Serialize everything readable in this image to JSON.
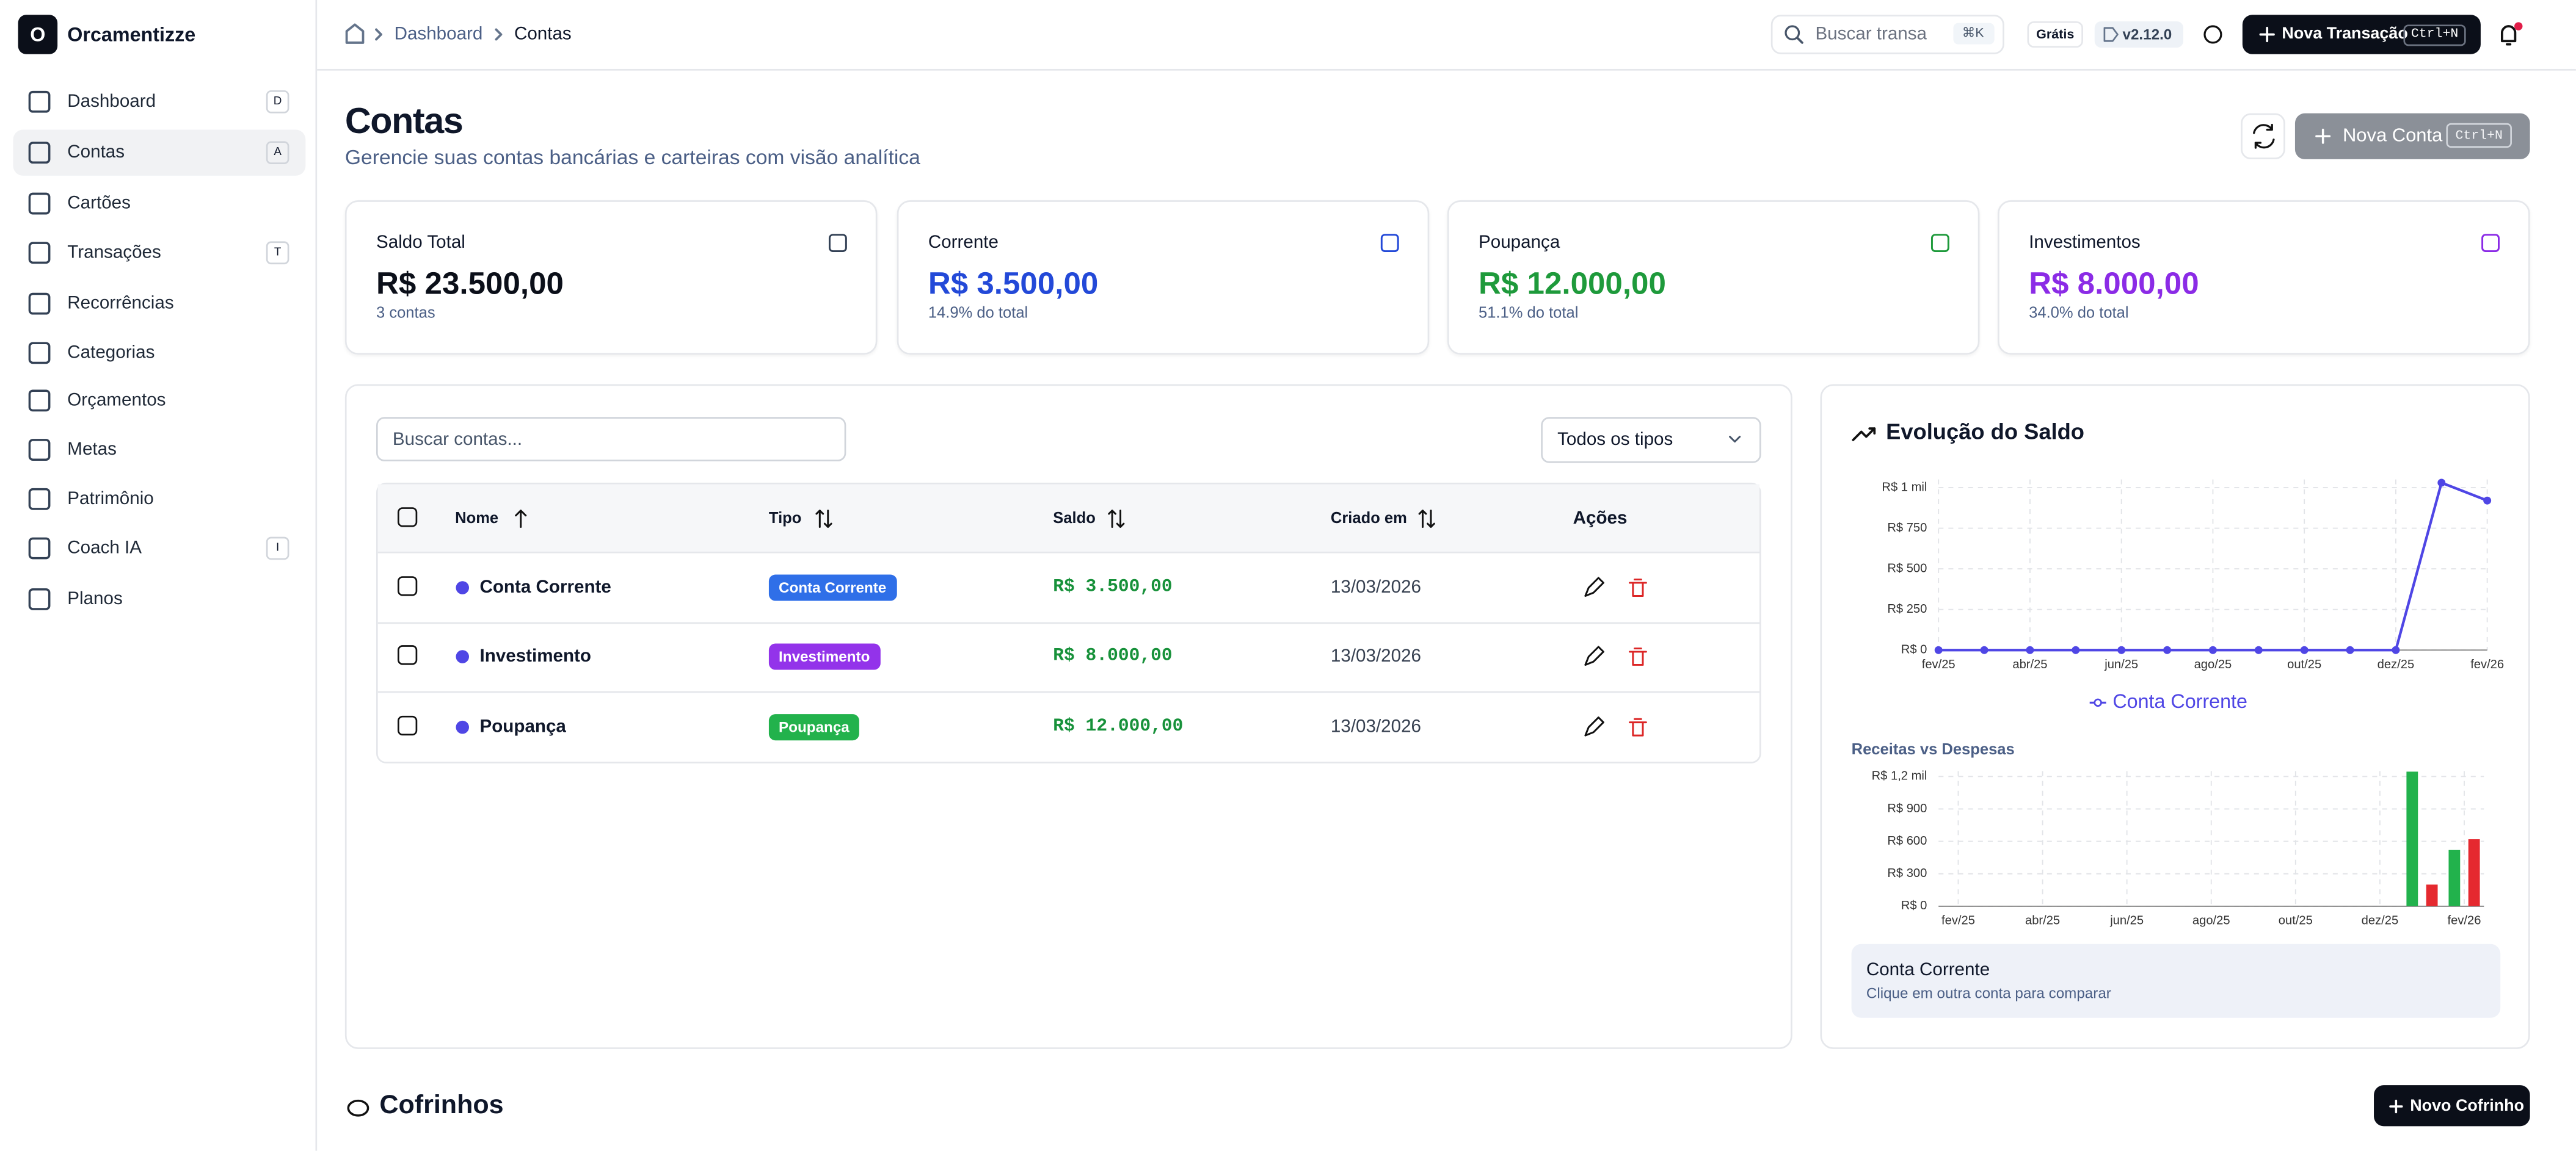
{
  "app": {
    "logo_letter": "O",
    "name": "Orcamentizze"
  },
  "nav": [
    {
      "label": "Dashboard",
      "shortcut": "D"
    },
    {
      "label": "Contas",
      "shortcut": "A"
    },
    {
      "label": "Cartões"
    },
    {
      "label": "Transações",
      "shortcut": "T"
    },
    {
      "label": "Recorrências"
    },
    {
      "label": "Categorias"
    },
    {
      "label": "Orçamentos"
    },
    {
      "label": "Metas"
    },
    {
      "label": "Patrimônio"
    },
    {
      "label": "Coach IA",
      "shortcut": "I"
    },
    {
      "label": "Planos"
    }
  ],
  "breadcrumb": [
    "Dashboard",
    "Contas"
  ],
  "topbar": {
    "search_placeholder": "Buscar transa",
    "search_shortcut": "⌘K",
    "plan": "Grátis",
    "version": "v2.12.0",
    "new_button": "Nova Transação",
    "new_shortcut": "Ctrl+N"
  },
  "page": {
    "title": "Contas",
    "subtitle": "Gerencie suas contas bancárias e carteiras com visão analítica",
    "new_button": "Nova Conta",
    "new_shortcut": "Ctrl+N"
  },
  "summary": [
    {
      "label": "Saldo Total",
      "value": "R$ 23.500,00",
      "note": "3 contas",
      "color": "#0b0f19"
    },
    {
      "label": "Corrente",
      "value": "R$ 3.500,00",
      "note": "14.9% do total",
      "color": "#2349d8"
    },
    {
      "label": "Poupança",
      "value": "R$ 12.000,00",
      "note": "51.1% do total",
      "color": "#1e9a3b"
    },
    {
      "label": "Investimentos",
      "value": "R$ 8.000,00",
      "note": "34.0% do total",
      "color": "#8b2be6"
    }
  ],
  "table": {
    "search_placeholder": "Buscar contas...",
    "filter": "Todos os tipos",
    "headers": [
      "Nome",
      "Tipo",
      "Saldo",
      "Criado em",
      "Ações"
    ],
    "rows": [
      {
        "name": "Conta Corrente",
        "type": "Conta Corrente",
        "type_color": "#2f6fe8",
        "balance": "R$ 3.500,00",
        "created": "13/03/2026"
      },
      {
        "name": "Investimento",
        "type": "Investimento",
        "type_color": "#9333ea",
        "balance": "R$ 8.000,00",
        "created": "13/03/2026"
      },
      {
        "name": "Poupança",
        "type": "Poupança",
        "type_color": "#22b24c",
        "balance": "R$ 12.000,00",
        "created": "13/03/2026"
      }
    ]
  },
  "chart_data": [
    {
      "type": "line",
      "title": "Evolução do Saldo",
      "categories": [
        "fev/25",
        null,
        "abr/25",
        null,
        "jun/25",
        null,
        "ago/25",
        null,
        "out/25",
        null,
        "dez/25",
        null,
        "fev/26"
      ],
      "series": [
        {
          "name": "Conta Corrente",
          "color": "#4f46e5",
          "values": [
            0,
            0,
            0,
            0,
            0,
            0,
            0,
            0,
            0,
            0,
            0,
            1030,
            920
          ]
        }
      ],
      "ylim": [
        0,
        1050
      ],
      "yticks": [
        {
          "value": 0,
          "label": "R$ 0"
        },
        {
          "value": 250,
          "label": "R$ 250"
        },
        {
          "value": 500,
          "label": "R$ 500"
        },
        {
          "value": 750,
          "label": "R$ 750"
        },
        {
          "value": 1000,
          "label": "R$ 1 mil"
        }
      ],
      "grid": true
    },
    {
      "type": "bar",
      "title": "Receitas vs Despesas",
      "categories": [
        "fev/25",
        null,
        "abr/25",
        null,
        "jun/25",
        null,
        "ago/25",
        null,
        "out/25",
        null,
        "dez/25",
        null,
        "fev/26"
      ],
      "series": [
        {
          "color": "#22b24c",
          "values": [
            0,
            0,
            0,
            0,
            0,
            0,
            0,
            0,
            0,
            0,
            0,
            1245,
            520
          ]
        },
        {
          "color": "#e5292f",
          "values": [
            0,
            0,
            0,
            0,
            0,
            0,
            0,
            0,
            0,
            0,
            0,
            200,
            620
          ]
        }
      ],
      "ylim": [
        0,
        1250
      ],
      "yticks": [
        {
          "value": 0,
          "label": "R$ 0"
        },
        {
          "value": 300,
          "label": "R$ 300"
        },
        {
          "value": 600,
          "label": "R$ 600"
        },
        {
          "value": 900,
          "label": "R$ 900"
        },
        {
          "value": 1200,
          "label": "R$ 1,2 mil"
        }
      ],
      "grid": true
    }
  ],
  "selected": {
    "title": "Conta Corrente",
    "hint": "Clique em outra conta para comparar"
  },
  "piggy": {
    "title": "Cofrinhos",
    "button": "Novo Cofrinho"
  }
}
